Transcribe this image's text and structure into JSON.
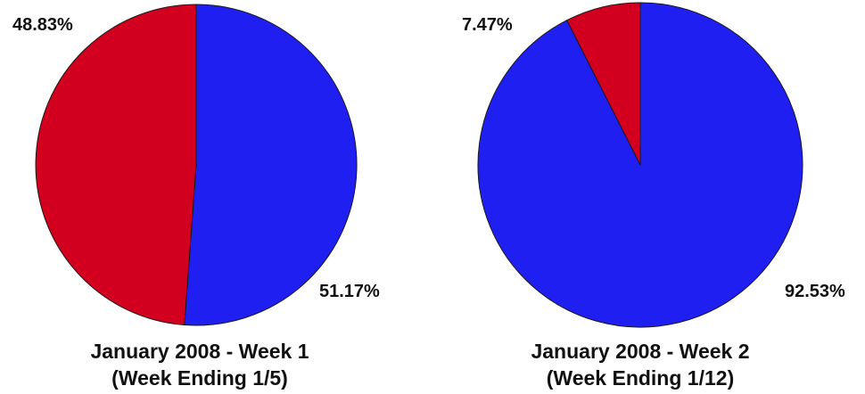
{
  "colors": {
    "blue": "#1f1ff2",
    "red": "#d2001e",
    "outline": "#1a1a1a"
  },
  "chart_data": [
    {
      "type": "pie",
      "title": "January 2008 - Week 1",
      "subtitle": "(Week Ending 1/5)",
      "slices": [
        {
          "value": 51.17,
          "label": "51.17%",
          "color": "#1f1ff2"
        },
        {
          "value": 48.83,
          "label": "48.83%",
          "color": "#d2001e"
        }
      ]
    },
    {
      "type": "pie",
      "title": "January 2008 - Week 2",
      "subtitle": "(Week Ending 1/12)",
      "slices": [
        {
          "value": 92.53,
          "label": "92.53%",
          "color": "#1f1ff2"
        },
        {
          "value": 7.47,
          "label": "7.47%",
          "color": "#d2001e"
        }
      ]
    }
  ]
}
